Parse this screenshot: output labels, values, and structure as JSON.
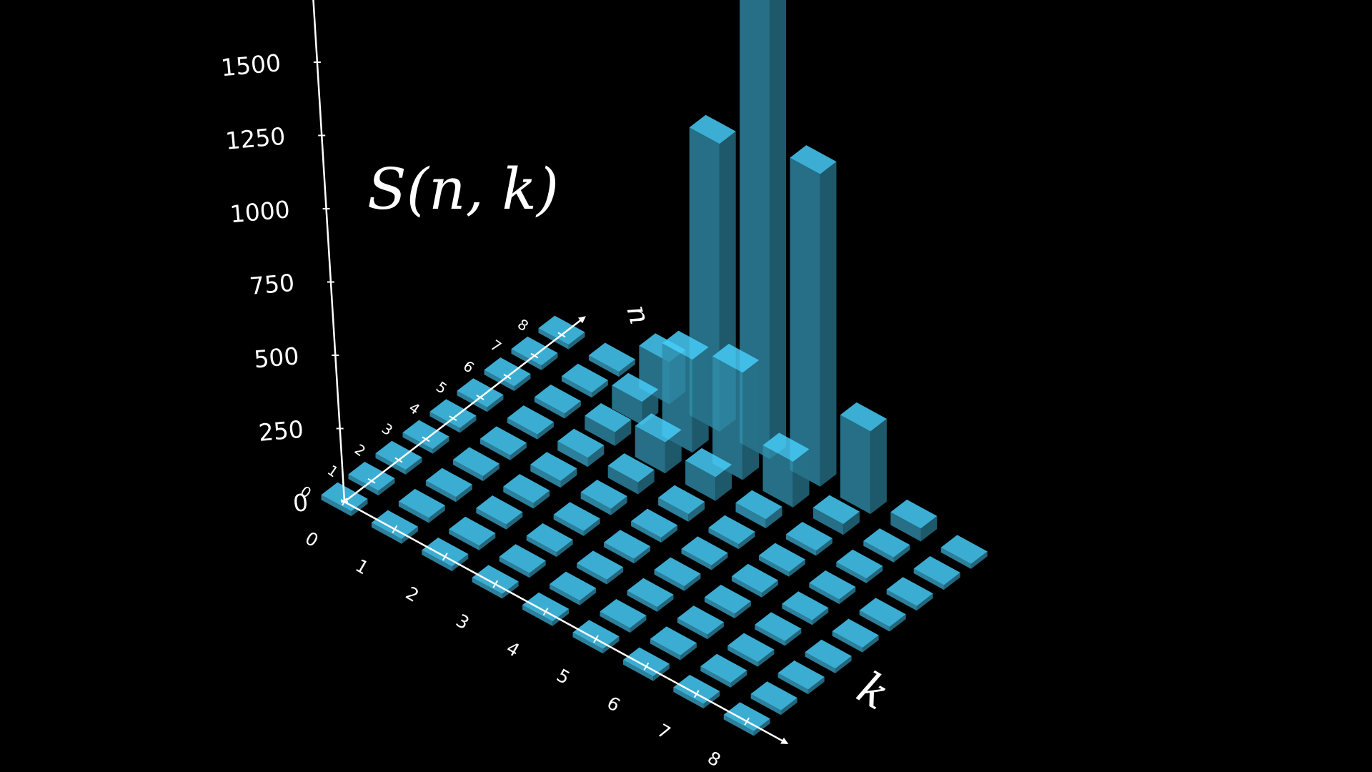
{
  "chart_data": {
    "type": "bar3d",
    "title": "S(n, k)",
    "xlabel": "k",
    "ylabel": "n",
    "zlabel": "",
    "x_ticks": [
      "0",
      "1",
      "2",
      "3",
      "4",
      "5",
      "6",
      "7",
      "8"
    ],
    "y_ticks": [
      "0",
      "1",
      "2",
      "3",
      "4",
      "5",
      "6",
      "7",
      "8"
    ],
    "z_ticks": [
      "0",
      "250",
      "500",
      "750",
      "1000",
      "1250",
      "1500"
    ],
    "zlim": [
      0,
      1500
    ],
    "grid": false,
    "legend": "none",
    "colors": {
      "bar": "#3fb6dd",
      "axis": "#ffffff",
      "background": "#000000"
    },
    "n_values": [
      0,
      1,
      2,
      3,
      4,
      5,
      6,
      7,
      8
    ],
    "k_values": [
      0,
      1,
      2,
      3,
      4,
      5,
      6,
      7,
      8
    ],
    "values": [
      [
        1,
        0,
        0,
        0,
        0,
        0,
        0,
        0,
        0
      ],
      [
        0,
        1,
        0,
        0,
        0,
        0,
        0,
        0,
        0
      ],
      [
        0,
        1,
        1,
        0,
        0,
        0,
        0,
        0,
        0
      ],
      [
        0,
        1,
        3,
        1,
        0,
        0,
        0,
        0,
        0
      ],
      [
        0,
        1,
        7,
        6,
        1,
        0,
        0,
        0,
        0
      ],
      [
        0,
        1,
        15,
        25,
        10,
        1,
        0,
        0,
        0
      ],
      [
        0,
        1,
        31,
        90,
        65,
        15,
        1,
        0,
        0
      ],
      [
        0,
        1,
        63,
        301,
        350,
        140,
        21,
        1,
        0
      ],
      [
        0,
        1,
        127,
        966,
        1701,
        1050,
        266,
        28,
        1
      ]
    ]
  }
}
